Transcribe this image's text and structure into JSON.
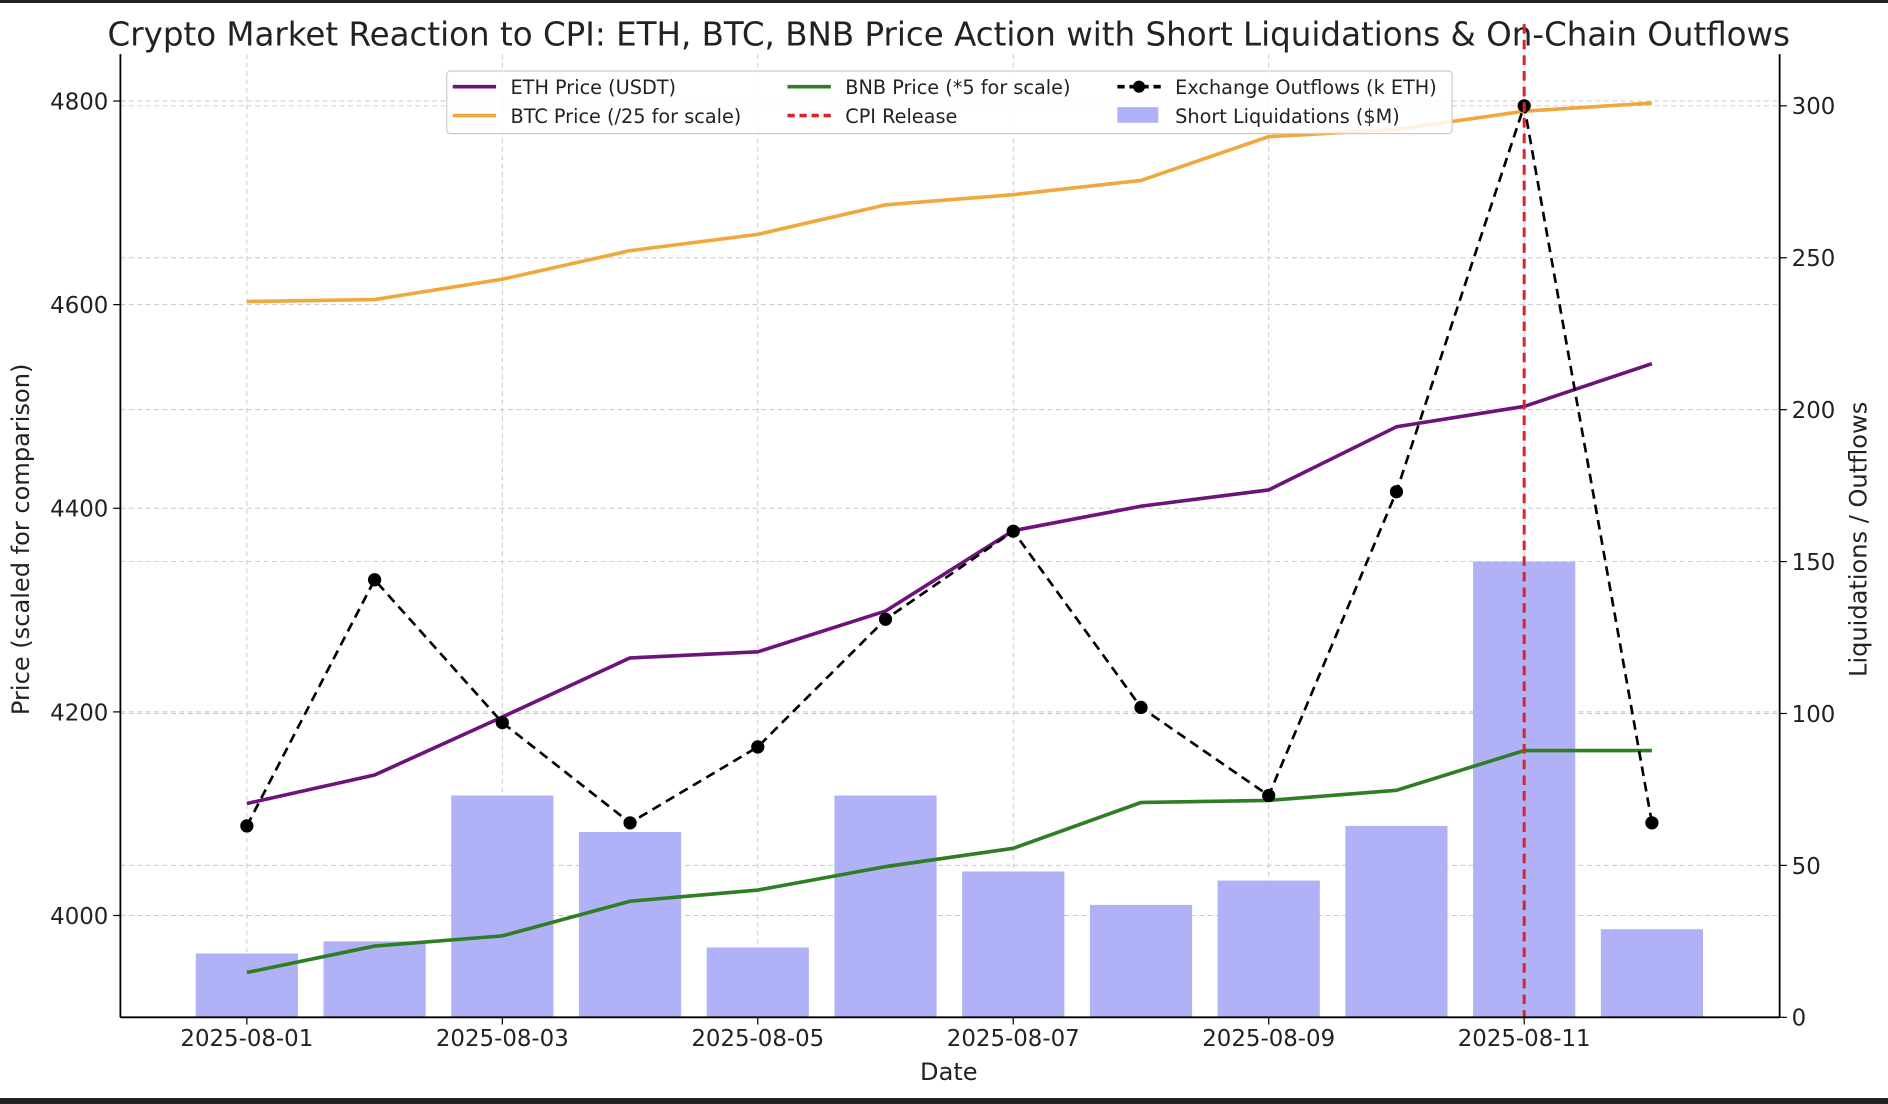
{
  "chart_data": {
    "type": "line",
    "title": "Crypto Market Reaction to CPI: ETH, BTC, BNB Price Action with Short Liquidations & On-Chain Outflows",
    "xlabel": "Date",
    "ylabel": "Price (scaled for comparison)",
    "ylabel_right": "Liquidations / Outflows",
    "x": [
      "2025-08-01",
      "2025-08-02",
      "2025-08-03",
      "2025-08-04",
      "2025-08-05",
      "2025-08-06",
      "2025-08-07",
      "2025-08-08",
      "2025-08-09",
      "2025-08-10",
      "2025-08-11",
      "2025-08-12"
    ],
    "x_tick_labels": [
      "2025-08-01",
      "2025-08-03",
      "2025-08-05",
      "2025-08-07",
      "2025-08-09",
      "2025-08-11"
    ],
    "ylim": [
      3900,
      4846
    ],
    "yticks": [
      4000,
      4200,
      4400,
      4600,
      4800
    ],
    "ylim_right": [
      0,
      317
    ],
    "yticks_right": [
      0,
      50,
      100,
      150,
      200,
      250,
      300
    ],
    "grid": true,
    "legend_placement": "top-center",
    "series": [
      {
        "name": "ETH Price (USDT)",
        "type": "line",
        "axis": "left",
        "color": "#6c1479",
        "values": [
          4110,
          4138,
          4195,
          4253,
          4259,
          4299,
          4378,
          4402,
          4418,
          4480,
          4500,
          4542
        ]
      },
      {
        "name": "BTC Price (/25 for scale)",
        "type": "line",
        "axis": "left",
        "color": "#f0a83c",
        "values": [
          4603,
          4605,
          4625,
          4653,
          4669,
          4698,
          4708,
          4722,
          4765,
          4772,
          4790,
          4798
        ]
      },
      {
        "name": "BNB Price (*5 for scale)",
        "type": "line",
        "axis": "left",
        "color": "#2f7d24",
        "values": [
          3944,
          3970,
          3980,
          4014,
          4025,
          4048,
          4066,
          4111,
          4113,
          4123,
          4162,
          4162
        ]
      },
      {
        "name": "CPI Release",
        "type": "vline",
        "color": "#d62728",
        "x": "2025-08-11"
      },
      {
        "name": "Exchange Outflows (k ETH)",
        "type": "line-dashed-marker",
        "axis": "right",
        "color": "#000000",
        "values": [
          63,
          144,
          97,
          64,
          89,
          131,
          160,
          102,
          73,
          173,
          300,
          64
        ]
      },
      {
        "name": "Short Liquidations ($M)",
        "type": "bar",
        "axis": "right",
        "color": "#b1b1f7",
        "values": [
          21,
          25,
          73,
          61,
          23,
          73,
          48,
          37,
          45,
          63,
          150,
          29
        ]
      }
    ],
    "legend_order": [
      "ETH Price (USDT)",
      "BTC Price (/25 for scale)",
      "BNB Price (*5 for scale)",
      "CPI Release",
      "Exchange Outflows (k ETH)",
      "Short Liquidations ($M)"
    ]
  }
}
